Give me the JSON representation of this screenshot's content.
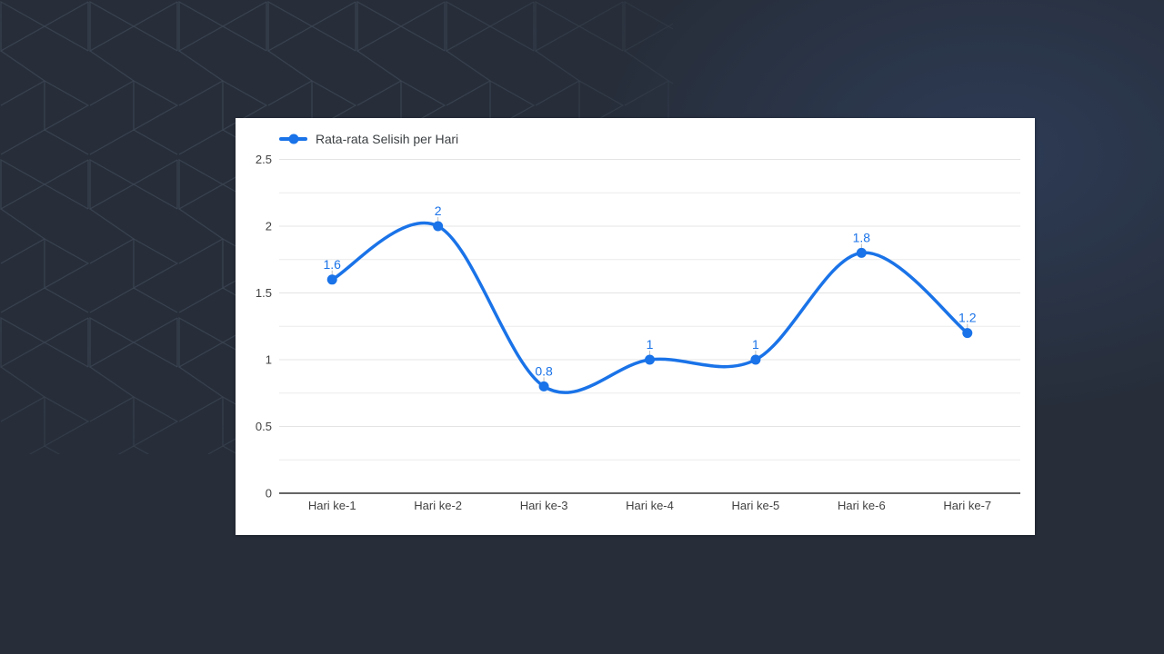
{
  "page": {
    "background_color": "#272e3a",
    "pattern_line_color": "#3b4452",
    "glow_color": "#2d3b55"
  },
  "chart_data": {
    "type": "line",
    "smooth": true,
    "title": "",
    "xlabel": "",
    "ylabel": "",
    "legend": {
      "position": "top",
      "label": "Rata-rata Selisih per Hari"
    },
    "categories": [
      "Hari ke-1",
      "Hari ke-2",
      "Hari ke-3",
      "Hari ke-4",
      "Hari ke-5",
      "Hari ke-6",
      "Hari ke-7"
    ],
    "series": [
      {
        "name": "Rata-rata Selisih per Hari",
        "values": [
          1.6,
          2,
          0.8,
          1,
          1,
          1.8,
          1.2
        ],
        "point_labels": [
          "1.6",
          "2",
          "0.8",
          "1",
          "1",
          "1.8",
          "1.2"
        ],
        "color": "#1a73e8"
      }
    ],
    "ylim": [
      0,
      2.5
    ],
    "y_ticks": [
      {
        "value": 0,
        "label": "0"
      },
      {
        "value": 0.5,
        "label": "0.5"
      },
      {
        "value": 1,
        "label": "1"
      },
      {
        "value": 1.5,
        "label": "1.5"
      },
      {
        "value": 2,
        "label": "2"
      },
      {
        "value": 2.5,
        "label": "2.5"
      }
    ],
    "minor_gridline_step": 0.25,
    "grid": true,
    "colors": {
      "grid": "#e4e4e4",
      "minor_grid": "#ececec",
      "baseline": "#333333",
      "axis_text": "#424242",
      "legend_text": "#3c4043",
      "label_stem": "#bdbdbd",
      "card_background": "#ffffff"
    }
  }
}
